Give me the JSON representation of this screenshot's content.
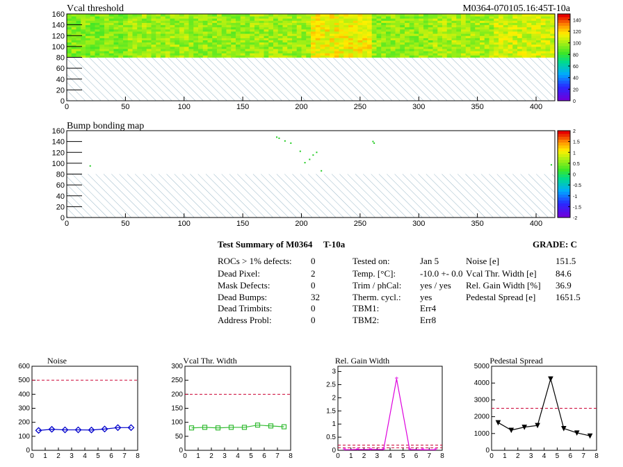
{
  "header": {
    "title_left": "Vcal threshold",
    "title_right": "M0364-070105.16:45T-10a"
  },
  "maps": [
    {
      "title": "Vcal threshold",
      "x_ticks": [
        0,
        50,
        100,
        150,
        200,
        250,
        300,
        350,
        400
      ],
      "y_ticks": [
        0,
        20,
        40,
        60,
        80,
        100,
        120,
        140,
        160
      ],
      "xlim": [
        0,
        416
      ],
      "ylim": [
        0,
        160
      ],
      "filled_rows": [
        80,
        160
      ],
      "palette_ticks": [
        "0",
        "20",
        "40",
        "60",
        "80",
        "100",
        "120",
        "140"
      ],
      "palette_range": [
        0,
        150
      ],
      "roc_mean_threshold": [
        95,
        100,
        98,
        100,
        115,
        98,
        102,
        108
      ]
    },
    {
      "title": "Bump bonding map",
      "x_ticks": [
        0,
        50,
        100,
        150,
        200,
        250,
        300,
        350,
        400
      ],
      "y_ticks": [
        0,
        20,
        40,
        60,
        80,
        100,
        120,
        140,
        160
      ],
      "xlim": [
        0,
        416
      ],
      "ylim": [
        0,
        160
      ],
      "palette_ticks": [
        "-2",
        "-1.5",
        "-1",
        "-0.5",
        "0",
        "0.5",
        "1",
        "1.5",
        "2"
      ],
      "palette_range": [
        -2,
        2
      ],
      "points": [
        [
          179,
          148
        ],
        [
          181,
          146
        ],
        [
          186,
          141
        ],
        [
          191,
          137
        ],
        [
          199,
          122
        ],
        [
          203,
          101
        ],
        [
          207,
          107
        ],
        [
          210,
          115
        ],
        [
          213,
          120
        ],
        [
          217,
          86
        ],
        [
          261,
          140
        ],
        [
          262,
          137
        ],
        [
          20,
          95
        ],
        [
          413,
          97
        ]
      ]
    }
  ],
  "summary": {
    "title": "Test Summary of M0364",
    "condition": "T-10a",
    "grade": "GRADE:  C",
    "col1": [
      {
        "label": "ROCs > 1% defects:",
        "value": "0"
      },
      {
        "label": "Dead Pixel:",
        "value": "2"
      },
      {
        "label": "Mask Defects:",
        "value": "0"
      },
      {
        "label": "Dead Bumps:",
        "value": "32"
      },
      {
        "label": "Dead Trimbits:",
        "value": "0"
      },
      {
        "label": "Address Probl:",
        "value": "0"
      }
    ],
    "col2": [
      {
        "label": "Tested on:",
        "value": "Jan 5"
      },
      {
        "label": "Temp. [°C]:",
        "value": "-10.0 +- 0.0"
      },
      {
        "label": "Trim / phCal:",
        "value": "yes / yes"
      },
      {
        "label": "Therm. cycl.:",
        "value": "yes"
      },
      {
        "label": "TBM1:",
        "value": "Err4"
      },
      {
        "label": "TBM2:",
        "value": "Err8"
      }
    ],
    "col3": [
      {
        "label": "Noise [e]",
        "value": "151.5"
      },
      {
        "label": "Vcal Thr. Width [e]",
        "value": "84.6"
      },
      {
        "label": "Rel. Gain Width [%]",
        "value": "36.9"
      },
      {
        "label": "Pedestal Spread [e]",
        "value": "1651.5"
      }
    ]
  },
  "chart_data": [
    {
      "type": "line",
      "title": "Noise",
      "x": [
        0.5,
        1.5,
        2.5,
        3.5,
        4.5,
        5.5,
        6.5,
        7.5
      ],
      "values": [
        142,
        150,
        146,
        146,
        145,
        152,
        162,
        162
      ],
      "xlim": [
        0,
        8
      ],
      "ylim": [
        0,
        600
      ],
      "x_ticks": [
        "0",
        "1",
        "2",
        "3",
        "4",
        "5",
        "6",
        "7",
        "8"
      ],
      "y_ticks": [
        "0",
        "100",
        "200",
        "300",
        "400",
        "500",
        "600"
      ],
      "cut_lines": [
        500
      ],
      "marker": "diamond",
      "color": "#0000cc"
    },
    {
      "type": "line",
      "title": "Vcal Thr. Width",
      "x": [
        0.5,
        1.5,
        2.5,
        3.5,
        4.5,
        5.5,
        6.5,
        7.5
      ],
      "values": [
        80,
        82,
        80,
        82,
        82,
        90,
        87,
        84
      ],
      "xlim": [
        0,
        8
      ],
      "ylim": [
        0,
        300
      ],
      "x_ticks": [
        "0",
        "1",
        "2",
        "3",
        "4",
        "5",
        "6",
        "7",
        "8"
      ],
      "y_ticks": [
        "0",
        "50",
        "100",
        "150",
        "200",
        "250",
        "300"
      ],
      "cut_lines": [
        200
      ],
      "marker": "square",
      "color": "#33bb33"
    },
    {
      "type": "line",
      "title": "Rel. Gain Width",
      "x": [
        0.5,
        1.5,
        2.5,
        3.5,
        4.5,
        5.5,
        6.5,
        7.5
      ],
      "values": [
        0.02,
        0.03,
        0.03,
        0.03,
        2.72,
        0.03,
        0.02,
        0.02
      ],
      "xlim": [
        0,
        8
      ],
      "ylim": [
        0,
        3.2
      ],
      "x_ticks": [
        "0",
        "1",
        "2",
        "3",
        "4",
        "5",
        "6",
        "7",
        "8"
      ],
      "y_ticks": [
        "0",
        "0.5",
        "1",
        "1.5",
        "2",
        "2.5",
        "3"
      ],
      "cut_lines": [
        0.1,
        0.2
      ],
      "marker": "star",
      "color": "#dd00dd"
    },
    {
      "type": "line",
      "title": "Pedestal Spread",
      "x": [
        0.5,
        1.5,
        2.5,
        3.5,
        4.5,
        5.5,
        6.5,
        7.5
      ],
      "values": [
        1650,
        1200,
        1380,
        1480,
        4250,
        1300,
        1040,
        860
      ],
      "xlim": [
        0,
        8
      ],
      "ylim": [
        0,
        5000
      ],
      "x_ticks": [
        "0",
        "1",
        "2",
        "3",
        "4",
        "5",
        "6",
        "7",
        "8"
      ],
      "y_ticks": [
        "0",
        "1000",
        "2000",
        "3000",
        "4000",
        "5000"
      ],
      "cut_lines": [
        2500
      ],
      "marker": "triangle",
      "color": "#000000"
    }
  ]
}
